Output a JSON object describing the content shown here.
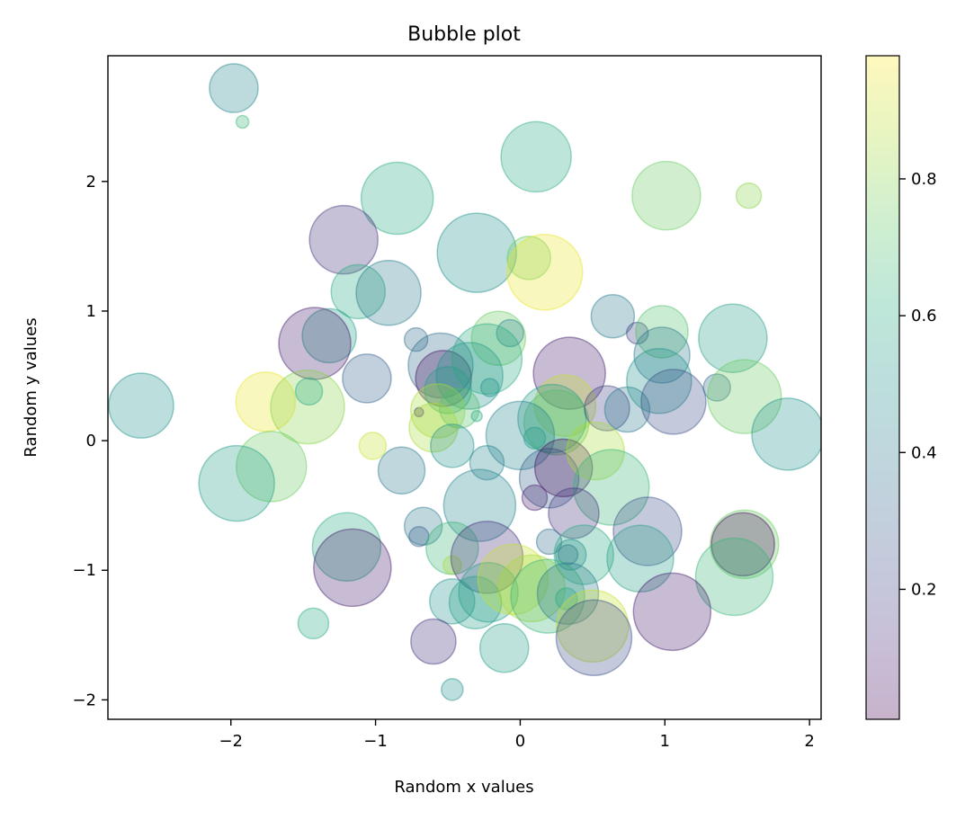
{
  "chart_data": {
    "type": "scatter",
    "title": "Bubble plot",
    "xlabel": "Random x values",
    "ylabel": "Random y values",
    "xlim": [
      -2.85,
      2.08
    ],
    "ylim": [
      -2.15,
      2.97
    ],
    "xticks": [
      -2,
      -1,
      0,
      1,
      2
    ],
    "yticks": [
      -2,
      -1,
      0,
      1,
      2
    ],
    "xtick_labels": [
      "−2",
      "−1",
      "0",
      "1",
      "2"
    ],
    "ytick_labels": [
      "−2",
      "−1",
      "0",
      "1",
      "2"
    ],
    "grid": false,
    "alpha": 0.3,
    "colormap": "viridis",
    "colorbar": {
      "range": [
        0.01,
        0.98
      ],
      "ticks": [
        0.2,
        0.4,
        0.6,
        0.8
      ],
      "tick_labels": [
        "0.2",
        "0.4",
        "0.6",
        "0.8"
      ]
    },
    "points": [
      {
        "x": -1.98,
        "y": 2.72,
        "c": 0.45,
        "s": 27
      },
      {
        "x": -1.92,
        "y": 2.46,
        "c": 0.65,
        "s": 7
      },
      {
        "x": 0.11,
        "y": 2.19,
        "c": 0.6,
        "s": 39
      },
      {
        "x": -0.85,
        "y": 1.87,
        "c": 0.6,
        "s": 40
      },
      {
        "x": 1.01,
        "y": 1.89,
        "c": 0.75,
        "s": 38
      },
      {
        "x": 1.58,
        "y": 1.89,
        "c": 0.8,
        "s": 14
      },
      {
        "x": -1.22,
        "y": 1.55,
        "c": 0.15,
        "s": 38
      },
      {
        "x": -0.3,
        "y": 1.45,
        "c": 0.5,
        "s": 44
      },
      {
        "x": 0.06,
        "y": 1.41,
        "c": 0.75,
        "s": 24
      },
      {
        "x": 0.17,
        "y": 1.3,
        "c": 0.95,
        "s": 42
      },
      {
        "x": -1.12,
        "y": 1.15,
        "c": 0.6,
        "s": 30
      },
      {
        "x": -0.91,
        "y": 1.14,
        "c": 0.4,
        "s": 36
      },
      {
        "x": -1.32,
        "y": 0.81,
        "c": 0.55,
        "s": 30
      },
      {
        "x": -1.42,
        "y": 0.75,
        "c": 0.1,
        "s": 40
      },
      {
        "x": -0.72,
        "y": 0.78,
        "c": 0.35,
        "s": 13
      },
      {
        "x": -0.15,
        "y": 0.79,
        "c": 0.75,
        "s": 30
      },
      {
        "x": -0.07,
        "y": 0.83,
        "c": 0.45,
        "s": 15
      },
      {
        "x": 0.64,
        "y": 0.96,
        "c": 0.4,
        "s": 24
      },
      {
        "x": 0.81,
        "y": 0.83,
        "c": 0.2,
        "s": 12
      },
      {
        "x": 0.98,
        "y": 0.84,
        "c": 0.7,
        "s": 29
      },
      {
        "x": 0.98,
        "y": 0.66,
        "c": 0.4,
        "s": 31
      },
      {
        "x": 1.47,
        "y": 0.79,
        "c": 0.55,
        "s": 38
      },
      {
        "x": -2.62,
        "y": 0.27,
        "c": 0.5,
        "s": 36
      },
      {
        "x": -1.76,
        "y": 0.3,
        "c": 0.95,
        "s": 33
      },
      {
        "x": -1.47,
        "y": 0.26,
        "c": 0.8,
        "s": 41
      },
      {
        "x": -1.46,
        "y": 0.38,
        "c": 0.6,
        "s": 15
      },
      {
        "x": -1.06,
        "y": 0.48,
        "c": 0.3,
        "s": 27
      },
      {
        "x": -0.55,
        "y": 0.58,
        "c": 0.35,
        "s": 36
      },
      {
        "x": -0.53,
        "y": 0.48,
        "c": 0.05,
        "s": 31
      },
      {
        "x": -0.5,
        "y": 0.39,
        "c": 0.55,
        "s": 26
      },
      {
        "x": -0.35,
        "y": 0.5,
        "c": 0.5,
        "s": 37
      },
      {
        "x": -0.23,
        "y": 0.63,
        "c": 0.6,
        "s": 39
      },
      {
        "x": -0.21,
        "y": 0.41,
        "c": 0.5,
        "s": 10
      },
      {
        "x": -0.57,
        "y": 0.23,
        "c": 0.85,
        "s": 30
      },
      {
        "x": -0.42,
        "y": 0.25,
        "c": 0.7,
        "s": 22
      },
      {
        "x": -0.7,
        "y": 0.22,
        "c": 0.15,
        "s": 5
      },
      {
        "x": -0.3,
        "y": 0.19,
        "c": 0.6,
        "s": 6
      },
      {
        "x": 0.34,
        "y": 0.52,
        "c": 0.1,
        "s": 40
      },
      {
        "x": 0.31,
        "y": 0.27,
        "c": 0.9,
        "s": 34
      },
      {
        "x": 0.25,
        "y": 0.14,
        "c": 0.75,
        "s": 36
      },
      {
        "x": 0.22,
        "y": 0.17,
        "c": 0.55,
        "s": 38
      },
      {
        "x": 0.6,
        "y": 0.25,
        "c": 0.2,
        "s": 25
      },
      {
        "x": 0.74,
        "y": 0.24,
        "c": 0.4,
        "s": 25
      },
      {
        "x": 0.96,
        "y": 0.46,
        "c": 0.5,
        "s": 36
      },
      {
        "x": 1.06,
        "y": 0.3,
        "c": 0.25,
        "s": 36
      },
      {
        "x": 1.36,
        "y": 0.41,
        "c": 0.35,
        "s": 15
      },
      {
        "x": 1.55,
        "y": 0.34,
        "c": 0.75,
        "s": 41
      },
      {
        "x": 1.85,
        "y": 0.05,
        "c": 0.5,
        "s": 40
      },
      {
        "x": -1.72,
        "y": -0.2,
        "c": 0.75,
        "s": 39
      },
      {
        "x": -1.96,
        "y": -0.33,
        "c": 0.55,
        "s": 42
      },
      {
        "x": -1.02,
        "y": -0.04,
        "c": 0.9,
        "s": 15
      },
      {
        "x": -0.82,
        "y": -0.23,
        "c": 0.4,
        "s": 26
      },
      {
        "x": -0.6,
        "y": 0.1,
        "c": 0.85,
        "s": 27
      },
      {
        "x": -0.47,
        "y": -0.04,
        "c": 0.5,
        "s": 24
      },
      {
        "x": -0.23,
        "y": -0.17,
        "c": 0.45,
        "s": 19
      },
      {
        "x": -0.28,
        "y": -0.5,
        "c": 0.45,
        "s": 40
      },
      {
        "x": 0.0,
        "y": 0.04,
        "c": 0.45,
        "s": 38
      },
      {
        "x": 0.1,
        "y": 0.02,
        "c": 0.55,
        "s": 12
      },
      {
        "x": 0.2,
        "y": -0.29,
        "c": 0.3,
        "s": 33
      },
      {
        "x": 0.1,
        "y": -0.44,
        "c": 0.1,
        "s": 14
      },
      {
        "x": 0.3,
        "y": -0.21,
        "c": 0.05,
        "s": 32
      },
      {
        "x": 0.52,
        "y": -0.08,
        "c": 0.85,
        "s": 32
      },
      {
        "x": 0.63,
        "y": -0.36,
        "c": 0.65,
        "s": 42
      },
      {
        "x": 0.37,
        "y": -0.56,
        "c": 0.15,
        "s": 28
      },
      {
        "x": -0.67,
        "y": -0.66,
        "c": 0.4,
        "s": 21
      },
      {
        "x": -0.7,
        "y": -0.74,
        "c": 0.3,
        "s": 11
      },
      {
        "x": -0.47,
        "y": -0.83,
        "c": 0.65,
        "s": 29
      },
      {
        "x": -0.47,
        "y": -0.96,
        "c": 0.85,
        "s": 10
      },
      {
        "x": -0.23,
        "y": -0.9,
        "c": 0.15,
        "s": 40
      },
      {
        "x": -1.2,
        "y": -0.82,
        "c": 0.6,
        "s": 38
      },
      {
        "x": -1.16,
        "y": -0.98,
        "c": 0.1,
        "s": 43
      },
      {
        "x": -1.43,
        "y": -1.41,
        "c": 0.6,
        "s": 17
      },
      {
        "x": 0.2,
        "y": -0.78,
        "c": 0.35,
        "s": 14
      },
      {
        "x": 0.33,
        "y": -0.88,
        "c": 0.25,
        "s": 11
      },
      {
        "x": 0.35,
        "y": -0.88,
        "c": 0.45,
        "s": 17
      },
      {
        "x": 0.44,
        "y": -0.88,
        "c": 0.6,
        "s": 33
      },
      {
        "x": 0.88,
        "y": -0.7,
        "c": 0.25,
        "s": 38
      },
      {
        "x": 0.83,
        "y": -0.91,
        "c": 0.55,
        "s": 37
      },
      {
        "x": 1.55,
        "y": -0.8,
        "c": 0.75,
        "s": 38
      },
      {
        "x": 1.54,
        "y": -0.8,
        "c": 0.05,
        "s": 35
      },
      {
        "x": 1.48,
        "y": -1.05,
        "c": 0.65,
        "s": 43
      },
      {
        "x": -0.47,
        "y": -1.24,
        "c": 0.5,
        "s": 25
      },
      {
        "x": -0.31,
        "y": -1.25,
        "c": 0.55,
        "s": 29
      },
      {
        "x": -0.22,
        "y": -1.17,
        "c": 0.55,
        "s": 33
      },
      {
        "x": -0.05,
        "y": -1.07,
        "c": 0.9,
        "s": 39
      },
      {
        "x": 0.08,
        "y": -1.14,
        "c": 0.85,
        "s": 37
      },
      {
        "x": 0.19,
        "y": -1.2,
        "c": 0.65,
        "s": 41
      },
      {
        "x": 0.33,
        "y": -1.18,
        "c": 0.4,
        "s": 34
      },
      {
        "x": 0.32,
        "y": -1.22,
        "c": 0.6,
        "s": 12
      },
      {
        "x": 0.5,
        "y": -1.43,
        "c": 0.9,
        "s": 40
      },
      {
        "x": 0.51,
        "y": -1.52,
        "c": 0.25,
        "s": 42
      },
      {
        "x": 1.05,
        "y": -1.32,
        "c": 0.1,
        "s": 43
      },
      {
        "x": -0.6,
        "y": -1.55,
        "c": 0.15,
        "s": 25
      },
      {
        "x": -0.11,
        "y": -1.6,
        "c": 0.55,
        "s": 27
      },
      {
        "x": -0.47,
        "y": -1.92,
        "c": 0.5,
        "s": 12
      }
    ]
  }
}
